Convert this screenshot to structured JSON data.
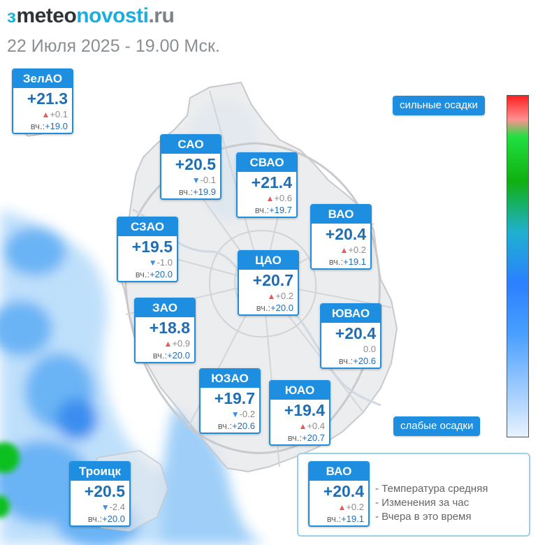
{
  "brand": {
    "mark": "ɜ",
    "meteo": "meteo",
    "novosti": "novosti",
    "ru": ".ru"
  },
  "timestamp": "22 Июля 2025 - 19.00 Мск.",
  "colors": {
    "card_header": "#1e8ee0",
    "temp_text": "#1f6eb4",
    "arrow_up": "#e85a5a",
    "arrow_down": "#3a8fe0",
    "precip_light": "#bfe0fb",
    "precip_medium": "#3a8ef0",
    "precip_heavy": "#10c020"
  },
  "prev_prefix": "вч.:",
  "scale": {
    "top_label": "сильные осадки",
    "bottom_label": "слабые осадки"
  },
  "districts": [
    {
      "name": "ЗелАО",
      "temp": "+21.3",
      "trend": "up",
      "delta": "+0.1",
      "prev": "+19.0"
    },
    {
      "name": "САО",
      "temp": "+20.5",
      "trend": "down",
      "delta": "-0.1",
      "prev": "+19.9"
    },
    {
      "name": "СВАО",
      "temp": "+21.4",
      "trend": "up",
      "delta": "+0.6",
      "prev": "+19.7"
    },
    {
      "name": "ВАО",
      "temp": "+20.4",
      "trend": "up",
      "delta": "+0.2",
      "prev": "+19.1"
    },
    {
      "name": "СЗАО",
      "temp": "+19.5",
      "trend": "down",
      "delta": "-1.0",
      "prev": "+20.0"
    },
    {
      "name": "ЦАО",
      "temp": "+20.7",
      "trend": "up",
      "delta": "+0.2",
      "prev": "+20.0"
    },
    {
      "name": "ЗАО",
      "temp": "+18.8",
      "trend": "up",
      "delta": "+0.9",
      "prev": "+20.0"
    },
    {
      "name": "ЮВАО",
      "temp": "+20.4",
      "trend": "flat",
      "delta": "0.0",
      "prev": "+20.6"
    },
    {
      "name": "ЮЗАО",
      "temp": "+19.7",
      "trend": "down",
      "delta": "-0.2",
      "prev": "+20.6"
    },
    {
      "name": "ЮАО",
      "temp": "+19.4",
      "trend": "up",
      "delta": "+0.4",
      "prev": "+20.7"
    },
    {
      "name": "Троицк",
      "temp": "+20.5",
      "trend": "down",
      "delta": "-2.4",
      "prev": "+20.0"
    }
  ],
  "legend": {
    "sample": {
      "name": "ВАО",
      "temp": "+20.4",
      "trend": "up",
      "delta": "+0.2",
      "prev": "+19.1"
    },
    "lines": [
      "- Температура средняя",
      "- Изменения за час",
      "- Вчера в это время"
    ]
  }
}
